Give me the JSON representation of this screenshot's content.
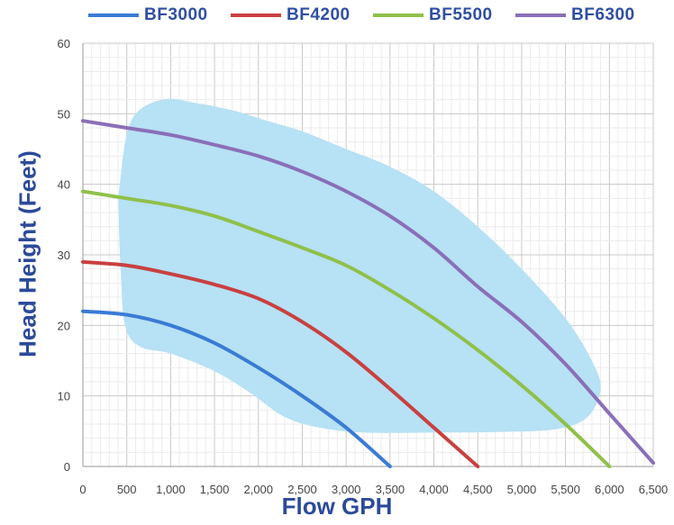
{
  "chart_data": {
    "type": "line",
    "title": "",
    "xlabel": "Flow GPH",
    "ylabel": "Head Height (Feet)",
    "xlim": [
      0,
      6500
    ],
    "ylim": [
      0,
      60
    ],
    "x_ticks": [
      0,
      500,
      1000,
      1500,
      2000,
      2500,
      3000,
      3500,
      4000,
      4500,
      5000,
      5500,
      6000,
      6500
    ],
    "x_tick_labels": [
      "0",
      "500",
      "1,000",
      "1,500",
      "2,000",
      "2,500",
      "3,000",
      "3,500",
      "4,000",
      "4,500",
      "5,000",
      "5,500",
      "6,000",
      "6,500"
    ],
    "y_ticks": [
      0,
      10,
      20,
      30,
      40,
      50,
      60
    ],
    "y_tick_labels": [
      "0",
      "10",
      "20",
      "30",
      "40",
      "50",
      "60"
    ],
    "grid": true,
    "legend_position": "top",
    "series": [
      {
        "name": "BF3000",
        "color": "#3a7bd5",
        "points": [
          [
            0,
            22
          ],
          [
            500,
            21.5
          ],
          [
            1000,
            20
          ],
          [
            1500,
            17.5
          ],
          [
            2000,
            14
          ],
          [
            2500,
            10
          ],
          [
            3000,
            5.5
          ],
          [
            3500,
            0
          ]
        ]
      },
      {
        "name": "BF4200",
        "color": "#c94040",
        "points": [
          [
            0,
            29
          ],
          [
            500,
            28.5
          ],
          [
            1000,
            27.3
          ],
          [
            1500,
            25.8
          ],
          [
            2000,
            23.8
          ],
          [
            2500,
            20.5
          ],
          [
            3000,
            16.2
          ],
          [
            3500,
            11
          ],
          [
            4000,
            5.5
          ],
          [
            4500,
            0
          ]
        ]
      },
      {
        "name": "BF5500",
        "color": "#8fc04a",
        "points": [
          [
            0,
            39
          ],
          [
            500,
            38
          ],
          [
            1000,
            37
          ],
          [
            1500,
            35.5
          ],
          [
            2000,
            33.3
          ],
          [
            2500,
            31
          ],
          [
            3000,
            28.5
          ],
          [
            3500,
            25
          ],
          [
            4000,
            21
          ],
          [
            4500,
            16.5
          ],
          [
            5000,
            11.5
          ],
          [
            5500,
            6
          ],
          [
            6000,
            0
          ]
        ]
      },
      {
        "name": "BF6300",
        "color": "#8a6fb8",
        "points": [
          [
            0,
            49
          ],
          [
            500,
            48
          ],
          [
            1000,
            47
          ],
          [
            1500,
            45.6
          ],
          [
            2000,
            44
          ],
          [
            2500,
            41.8
          ],
          [
            3000,
            39
          ],
          [
            3500,
            35.5
          ],
          [
            4000,
            31
          ],
          [
            4500,
            25.5
          ],
          [
            5000,
            20.5
          ],
          [
            5500,
            14.5
          ],
          [
            6000,
            7.5
          ],
          [
            6500,
            0.5
          ]
        ]
      }
    ],
    "region": {
      "color": "#b7e1f4",
      "boundary": [
        [
          420,
          40
        ],
        [
          550,
          49
        ],
        [
          900,
          52
        ],
        [
          1300,
          51.5
        ],
        [
          1700,
          50.5
        ],
        [
          2100,
          49
        ],
        [
          2500,
          47.5
        ],
        [
          3000,
          45
        ],
        [
          3500,
          42.5
        ],
        [
          4000,
          39
        ],
        [
          4500,
          34
        ],
        [
          5000,
          28
        ],
        [
          5500,
          21
        ],
        [
          5800,
          15
        ],
        [
          5900,
          11
        ],
        [
          5750,
          7
        ],
        [
          5400,
          5.3
        ],
        [
          4800,
          4.9
        ],
        [
          4000,
          4.8
        ],
        [
          3200,
          4.8
        ],
        [
          2700,
          5.5
        ],
        [
          2300,
          7
        ],
        [
          1900,
          10.5
        ],
        [
          1500,
          13.5
        ],
        [
          1000,
          16
        ],
        [
          650,
          17
        ],
        [
          480,
          20
        ],
        [
          430,
          28
        ],
        [
          410,
          35
        ]
      ]
    }
  }
}
